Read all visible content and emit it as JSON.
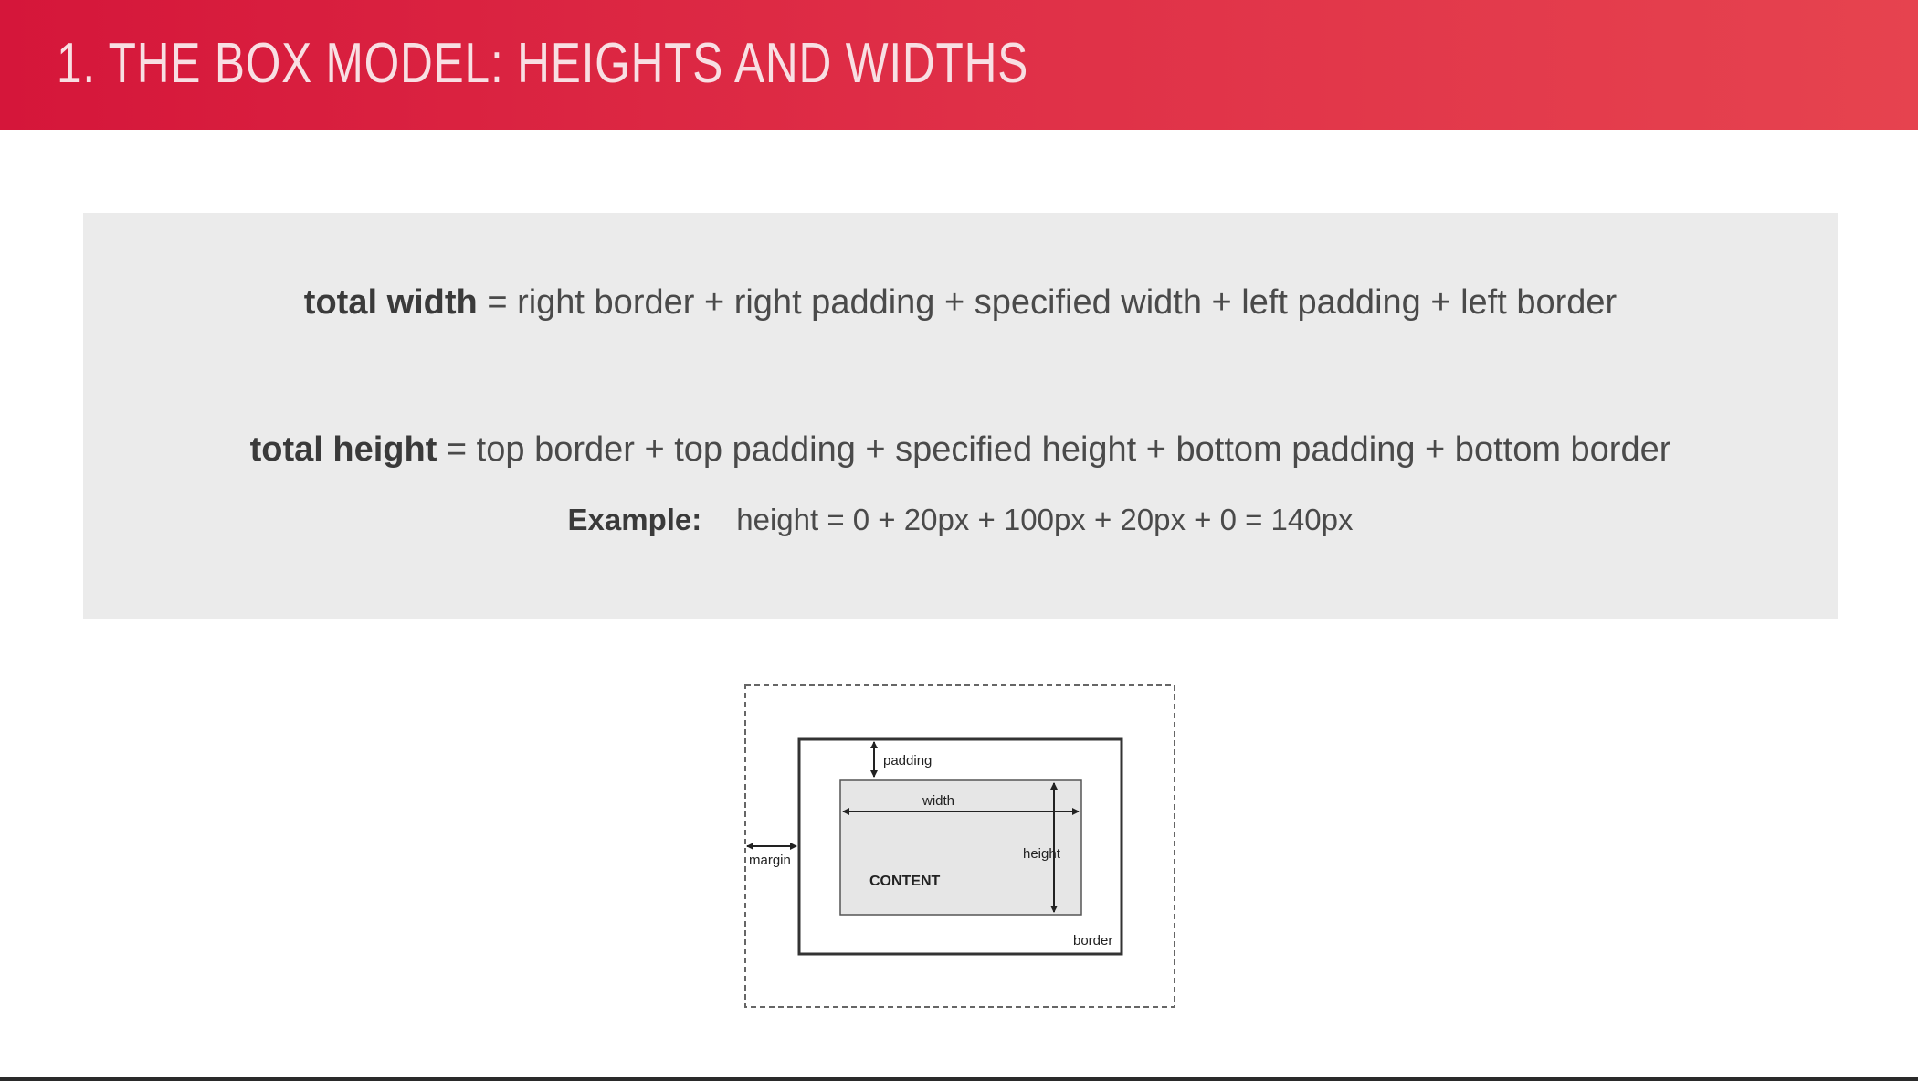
{
  "header": {
    "title": "1. THE BOX MODEL: HEIGHTS AND WIDTHS",
    "background_color": "#d5163a",
    "title_color": "#f8dfe3"
  },
  "formulas": {
    "width": {
      "term": "total width",
      "expression": " = right border + right padding + specified width + left padding + left border"
    },
    "height": {
      "term": "total height",
      "expression": " = top border + top padding + specified height + bottom padding + bottom border"
    },
    "example": {
      "label": "Example:",
      "text": "height = 0 + 20px + 100px + 20px + 0 = 140px"
    },
    "panel_color": "#ebebeb"
  },
  "diagram": {
    "labels": {
      "padding": "padding",
      "width": "width",
      "height": "height",
      "margin": "margin",
      "content": "CONTENT",
      "border": "border"
    },
    "content_fill": "#e6e6e6"
  }
}
